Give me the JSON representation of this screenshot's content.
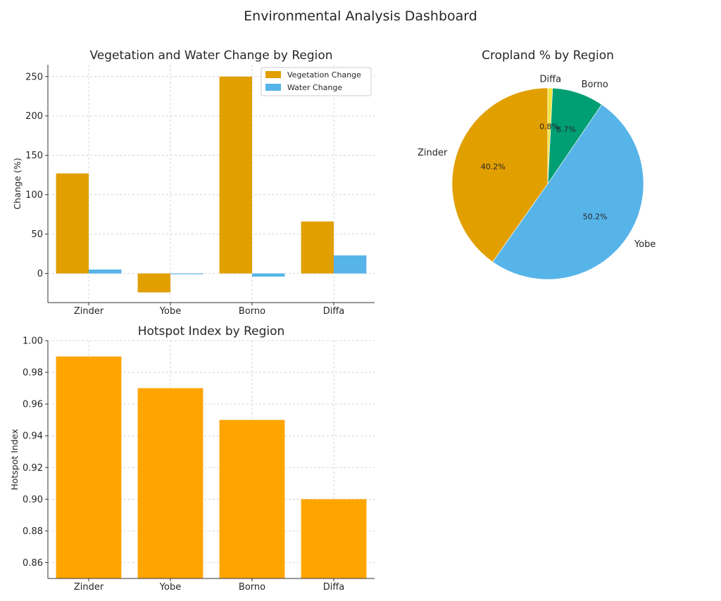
{
  "dashboard": {
    "title": "Environmental Analysis Dashboard"
  },
  "colors": {
    "vegetation": "#E19F00",
    "water": "#56B4E9",
    "hotspot": "#FFA500",
    "pie": [
      "#E19F00",
      "#56B4E9",
      "#009E73",
      "#F0E442"
    ]
  },
  "chart_data": [
    {
      "type": "bar",
      "title": "Vegetation and Water Change by Region",
      "xlabel": "",
      "ylabel": "Change (%)",
      "categories": [
        "Zinder",
        "Yobe",
        "Borno",
        "Diffa"
      ],
      "series": [
        {
          "name": "Vegetation Change",
          "values": [
            127,
            -24,
            250,
            66
          ]
        },
        {
          "name": "Water Change",
          "values": [
            5,
            -1,
            -4,
            23
          ]
        }
      ],
      "ylim": [
        -37,
        265
      ],
      "yticks": [
        0,
        50,
        100,
        150,
        200,
        250
      ],
      "grid": true,
      "legend": "top-right"
    },
    {
      "type": "pie",
      "title": "Cropland % by Region",
      "labels": [
        "Zinder",
        "Yobe",
        "Borno",
        "Diffa"
      ],
      "values": [
        40.2,
        50.2,
        8.7,
        0.8
      ],
      "pct_labels": [
        "40.2%",
        "50.2%",
        "8.7%",
        "0.8%"
      ]
    },
    {
      "type": "bar",
      "title": "Hotspot Index by Region",
      "xlabel": "",
      "ylabel": "Hotspot Index",
      "categories": [
        "Zinder",
        "Yobe",
        "Borno",
        "Diffa"
      ],
      "values": [
        0.99,
        0.97,
        0.95,
        0.9
      ],
      "ylim": [
        0.85,
        1.0
      ],
      "yticks": [
        "0.86",
        "0.88",
        "0.90",
        "0.92",
        "0.94",
        "0.96",
        "0.98",
        "1.00"
      ],
      "grid": true
    }
  ]
}
